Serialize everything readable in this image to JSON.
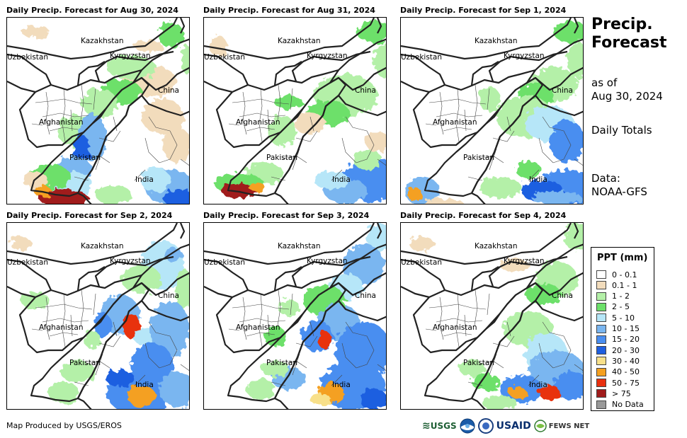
{
  "panels": [
    {
      "title": "Daily Precip. Forecast for Aug 30, 2024"
    },
    {
      "title": "Daily Precip. Forecast for Aug 31, 2024"
    },
    {
      "title": "Daily Precip. Forecast for Sep 1, 2024"
    },
    {
      "title": "Daily Precip. Forecast for Sep 2, 2024"
    },
    {
      "title": "Daily Precip. Forecast for Sep 3, 2024"
    },
    {
      "title": "Daily Precip. Forecast for Sep 4, 2024"
    }
  ],
  "map_labels": {
    "kazakhstan": "Kazakhstan",
    "uzbekistan": "Uzbekistan",
    "kyrgyzstan": "Kyrgyzstan",
    "china": "China",
    "afghanistan": "Afghanistan",
    "pakistan": "Pakistan",
    "india": "India"
  },
  "sidebar": {
    "title_line1": "Precip.",
    "title_line2": "Forecast",
    "asof_line1": "as of",
    "asof_line2": "Aug 30, 2024",
    "totals": "Daily Totals",
    "data_line1": "Data:",
    "data_line2": "NOAA-GFS"
  },
  "legend": {
    "title": "PPT (mm)",
    "items": [
      {
        "label": "0 - 0.1",
        "color": "#ffffff"
      },
      {
        "label": "0.1 - 1",
        "color": "#f2dcbc"
      },
      {
        "label": "1 - 2",
        "color": "#b4f0a8"
      },
      {
        "label": "2 - 5",
        "color": "#6de06a"
      },
      {
        "label": "5 - 10",
        "color": "#b6e6f8"
      },
      {
        "label": "10 - 15",
        "color": "#7ab6f0"
      },
      {
        "label": "15 - 20",
        "color": "#4a8ef0"
      },
      {
        "label": "20 - 30",
        "color": "#1f5fe0"
      },
      {
        "label": "30 - 40",
        "color": "#f8e08a"
      },
      {
        "label": "40 - 50",
        "color": "#f4a020"
      },
      {
        "label": "50 - 75",
        "color": "#e83010"
      },
      {
        "label": "> 75",
        "color": "#a01c1c"
      },
      {
        "label": "No Data",
        "color": "#999999"
      }
    ]
  },
  "footer": {
    "credit": "Map Produced by USGS/EROS",
    "logo_usgs": "USGS",
    "logo_usaid": "USAID",
    "logo_fewsnet": "FEWS NET"
  }
}
